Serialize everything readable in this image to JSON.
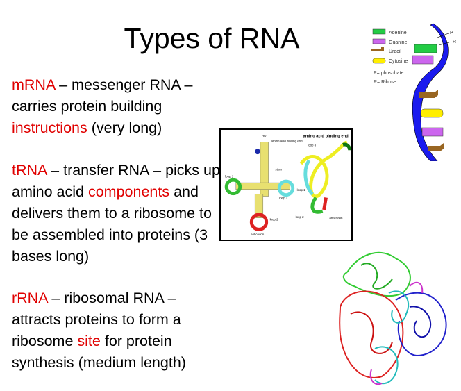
{
  "title": "Types of RNA",
  "paragraphs": [
    {
      "term": "mRNA",
      "t1": " – messenger RNA – carries protein building ",
      "highlight": "instructions",
      "t2": " (very long)"
    },
    {
      "term": "tRNA",
      "t1": " – transfer RNA – picks up amino acid ",
      "highlight": "components",
      "t2": " and delivers them to a ribosome  to be assembled into proteins (3 bases long)"
    },
    {
      "term": "rRNA",
      "t1": " – ribosomal RNA – attracts proteins to form a ribosome ",
      "highlight": "site",
      "t2": " for protein synthesis (medium length)"
    }
  ],
  "colors": {
    "highlight": "#e00000",
    "adenine": "#22cc44",
    "guanine": "#cc66ee",
    "uracil": "#996622",
    "cytosine": "#ffee00",
    "backbone": "#1a1aee"
  },
  "strand_figure": {
    "legend": [
      "Adenine",
      "Guanine",
      "Uracil",
      "Cytosine",
      "P= phosphate",
      "R= Ribose"
    ],
    "labels": [
      "P",
      "R"
    ]
  },
  "trna_figure": {
    "labels": [
      "HO",
      "amino acid binding end",
      "stem",
      "loop 1",
      "loop 2",
      "loop 3",
      "anticodon",
      "loop 3",
      "loop 1",
      "loop 2",
      "anticodon",
      "amino acid binding end"
    ]
  }
}
